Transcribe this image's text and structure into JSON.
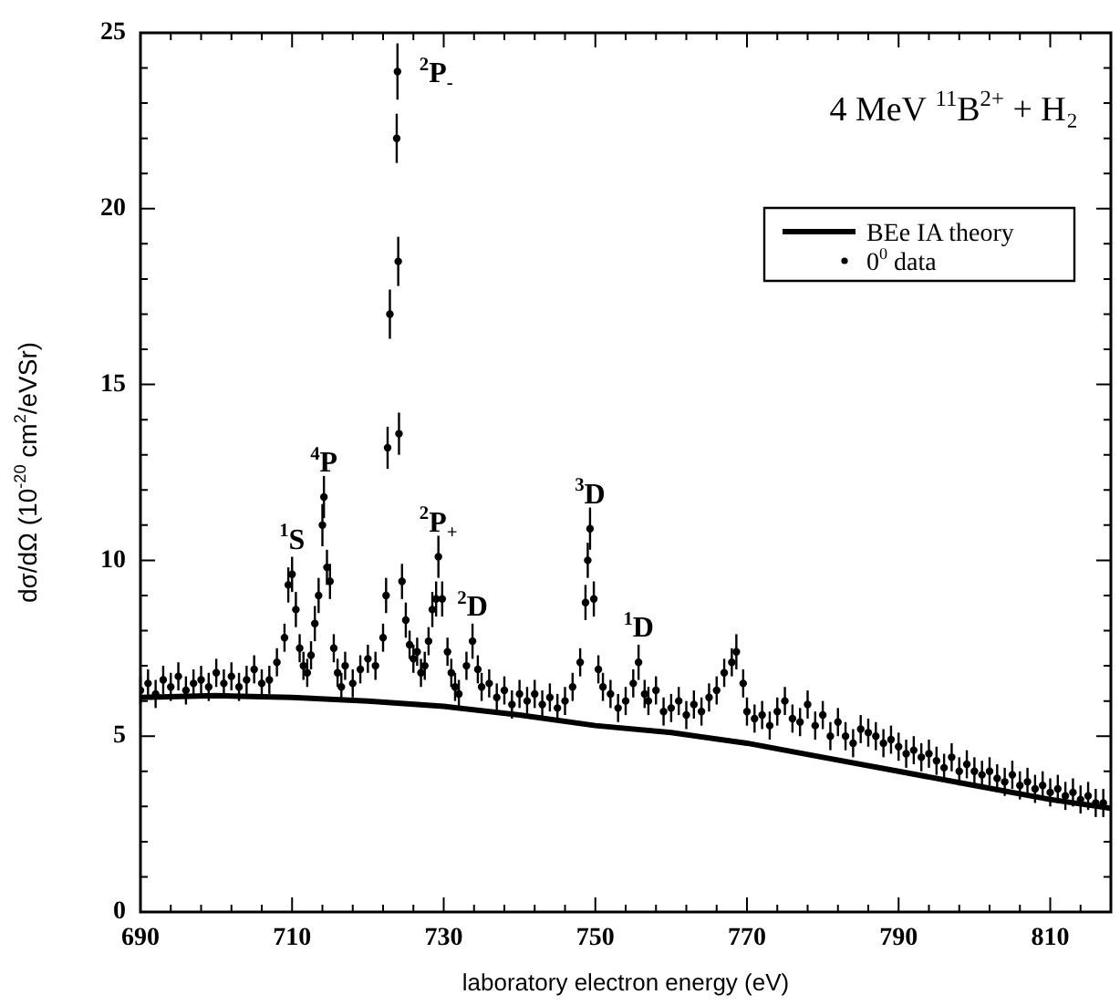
{
  "chart_data": {
    "type": "scatter",
    "title": "4 MeV $^{11}$B$^{2+}$ + H₂",
    "xlabel": "laboratory electron energy (eV)",
    "ylabel": "dσ/dΩ (10$^{-20}$ cm$^{2}$/eVSr)",
    "xlim": [
      690,
      818
    ],
    "ylim": [
      0,
      25
    ],
    "xticks": [
      690,
      {
        "value": 694,
        "label": null
      },
      {
        "value": 698,
        "label": null
      },
      {
        "value": 702,
        "label": null
      },
      {
        "value": 706,
        "label": null
      },
      710,
      {
        "value": 714,
        "label": null
      },
      {
        "value": 718,
        "label": null
      },
      {
        "value": 722,
        "label": null
      },
      {
        "value": 726,
        "label": null
      },
      730,
      {
        "value": 734,
        "label": null
      },
      {
        "value": 738,
        "label": null
      },
      {
        "value": 742,
        "label": null
      },
      {
        "value": 746,
        "label": null
      },
      750,
      {
        "value": 754,
        "label": null
      },
      {
        "value": 758,
        "label": null
      },
      {
        "value": 762,
        "label": null
      },
      {
        "value": 766,
        "label": null
      },
      770,
      {
        "value": 774,
        "label": null
      },
      {
        "value": 778,
        "label": null
      },
      {
        "value": 782,
        "label": null
      },
      {
        "value": 786,
        "label": null
      },
      790,
      {
        "value": 794,
        "label": null
      },
      {
        "value": 798,
        "label": null
      },
      {
        "value": 802,
        "label": null
      },
      {
        "value": 806,
        "label": null
      },
      810,
      {
        "value": 814,
        "label": null
      }
    ],
    "yticks": [
      0,
      {
        "value": 1,
        "label": null
      },
      {
        "value": 2,
        "label": null
      },
      {
        "value": 3,
        "label": null
      },
      {
        "value": 4,
        "label": null
      },
      5,
      {
        "value": 6,
        "label": null
      },
      {
        "value": 7,
        "label": null
      },
      {
        "value": 8,
        "label": null
      },
      {
        "value": 9,
        "label": null
      },
      10,
      {
        "value": 11,
        "label": null
      },
      {
        "value": 12,
        "label": null
      },
      {
        "value": 13,
        "label": null
      },
      {
        "value": 14,
        "label": null
      },
      15,
      {
        "value": 16,
        "label": null
      },
      {
        "value": 17,
        "label": null
      },
      {
        "value": 18,
        "label": null
      },
      {
        "value": 19,
        "label": null
      },
      20,
      {
        "value": 21,
        "label": null
      },
      {
        "value": 22,
        "label": null
      },
      {
        "value": 23,
        "label": null
      },
      {
        "value": 24,
        "label": null
      },
      25
    ],
    "grid": false,
    "legend": "top right",
    "series": [
      {
        "name": "BEe IA theory",
        "type": "line",
        "color": "#000000",
        "line_style": "solid",
        "marker": "none",
        "x": [
          690,
          700,
          710,
          720,
          730,
          740,
          750,
          760,
          770,
          780,
          790,
          800,
          810,
          818
        ],
        "values": [
          6.1,
          6.15,
          6.1,
          6.0,
          5.85,
          5.6,
          5.3,
          5.1,
          4.8,
          4.4,
          4.0,
          3.6,
          3.2,
          2.95
        ]
      },
      {
        "name": "0$^{0}$ data",
        "type": "scatter",
        "color": "#000000",
        "marker": "circle",
        "x": [
          690,
          691,
          692,
          693,
          694,
          695,
          696,
          697,
          698,
          699,
          700,
          701,
          702,
          703,
          704,
          705,
          706,
          707,
          708,
          709,
          709.5,
          710,
          710.5,
          711,
          711.5,
          712,
          712.5,
          713,
          713.5,
          714,
          714.2,
          714.6,
          715,
          715.5,
          716,
          716.5,
          717,
          718,
          719,
          720,
          721,
          722,
          722.4,
          722.6,
          722.9,
          723.8,
          723.9,
          724,
          724.1,
          724.5,
          725,
          725.5,
          726,
          726.5,
          727,
          727.5,
          728,
          728.5,
          729,
          729.3,
          729.8,
          730.5,
          731,
          731.5,
          732,
          733,
          733.8,
          734.5,
          735,
          736,
          737,
          738,
          739,
          740,
          741,
          742,
          743,
          744,
          745,
          746,
          747,
          748,
          748.7,
          749,
          749.3,
          749.8,
          750.4,
          751,
          752,
          753,
          754,
          755,
          755.7,
          756.5,
          757,
          758,
          759,
          760,
          761,
          762,
          763,
          764,
          765,
          766,
          767,
          768,
          768.6,
          769.5,
          770,
          771,
          772,
          773,
          774,
          775,
          776,
          777,
          778,
          779,
          780,
          781,
          782,
          783,
          784,
          785,
          786,
          787,
          788,
          789,
          790,
          791,
          792,
          793,
          794,
          795,
          796,
          797,
          798,
          799,
          800,
          801,
          802,
          803,
          804,
          805,
          806,
          807,
          808,
          809,
          810,
          811,
          812,
          813,
          814,
          815,
          816,
          817
        ],
        "values": [
          6.3,
          6.5,
          6.2,
          6.6,
          6.4,
          6.7,
          6.3,
          6.5,
          6.6,
          6.4,
          6.8,
          6.5,
          6.7,
          6.4,
          6.6,
          6.9,
          6.5,
          6.6,
          7.1,
          7.8,
          9.3,
          9.6,
          8.6,
          7.5,
          7.0,
          6.8,
          7.3,
          8.2,
          9.0,
          11.0,
          11.8,
          9.8,
          9.4,
          7.5,
          6.8,
          6.4,
          7.0,
          6.5,
          6.9,
          7.2,
          7.0,
          7.8,
          9.0,
          13.2,
          17.0,
          22.0,
          23.9,
          18.5,
          13.6,
          9.4,
          8.3,
          7.6,
          7.2,
          7.4,
          6.8,
          7.0,
          7.7,
          8.6,
          8.9,
          10.1,
          8.9,
          7.4,
          6.8,
          6.4,
          6.2,
          7.0,
          7.7,
          6.9,
          6.4,
          6.5,
          6.1,
          6.3,
          5.9,
          6.2,
          6.0,
          6.2,
          5.9,
          6.1,
          5.8,
          6.0,
          6.4,
          7.1,
          8.8,
          10.0,
          10.9,
          8.9,
          6.9,
          6.4,
          6.2,
          5.8,
          6.0,
          6.5,
          7.1,
          6.2,
          6.0,
          6.3,
          5.7,
          5.8,
          6.0,
          5.6,
          5.9,
          5.7,
          6.1,
          6.3,
          6.8,
          7.1,
          7.4,
          6.5,
          5.7,
          5.5,
          5.6,
          5.3,
          5.7,
          6.0,
          5.5,
          5.4,
          5.9,
          5.3,
          5.6,
          5.0,
          5.4,
          5.0,
          4.8,
          5.2,
          5.1,
          5.0,
          4.8,
          4.9,
          4.7,
          4.5,
          4.6,
          4.4,
          4.5,
          4.3,
          4.1,
          4.4,
          4.0,
          4.2,
          4.0,
          3.9,
          4.0,
          3.8,
          3.7,
          3.9,
          3.6,
          3.7,
          3.5,
          3.6,
          3.4,
          3.5,
          3.3,
          3.4,
          3.2,
          3.3,
          3.1,
          3.1
        ],
        "errors": [
          0.4,
          0.4,
          0.4,
          0.4,
          0.4,
          0.4,
          0.4,
          0.4,
          0.4,
          0.4,
          0.4,
          0.4,
          0.4,
          0.4,
          0.4,
          0.4,
          0.4,
          0.4,
          0.4,
          0.4,
          0.5,
          0.5,
          0.5,
          0.4,
          0.4,
          0.4,
          0.4,
          0.5,
          0.5,
          0.6,
          0.6,
          0.5,
          0.5,
          0.4,
          0.4,
          0.4,
          0.4,
          0.4,
          0.4,
          0.4,
          0.4,
          0.4,
          0.5,
          0.6,
          0.7,
          0.7,
          0.8,
          0.7,
          0.6,
          0.5,
          0.5,
          0.4,
          0.4,
          0.4,
          0.4,
          0.4,
          0.4,
          0.5,
          0.5,
          0.6,
          0.5,
          0.4,
          0.4,
          0.4,
          0.4,
          0.4,
          0.5,
          0.4,
          0.4,
          0.4,
          0.4,
          0.4,
          0.4,
          0.4,
          0.4,
          0.4,
          0.4,
          0.4,
          0.4,
          0.4,
          0.4,
          0.4,
          0.5,
          0.5,
          0.6,
          0.5,
          0.4,
          0.4,
          0.4,
          0.4,
          0.4,
          0.4,
          0.5,
          0.4,
          0.4,
          0.4,
          0.4,
          0.4,
          0.4,
          0.4,
          0.4,
          0.4,
          0.4,
          0.4,
          0.4,
          0.4,
          0.5,
          0.4,
          0.4,
          0.4,
          0.4,
          0.4,
          0.4,
          0.4,
          0.4,
          0.4,
          0.4,
          0.4,
          0.4,
          0.4,
          0.4,
          0.4,
          0.4,
          0.4,
          0.4,
          0.4,
          0.4,
          0.4,
          0.4,
          0.4,
          0.4,
          0.4,
          0.4,
          0.4,
          0.4,
          0.4,
          0.4,
          0.4,
          0.4,
          0.4,
          0.4,
          0.4,
          0.4,
          0.4,
          0.4,
          0.4,
          0.4,
          0.4,
          0.4,
          0.4,
          0.4,
          0.4,
          0.4,
          0.4,
          0.4,
          0.4
        ]
      }
    ],
    "annotations": [
      {
        "text": "$^{2}$P$_{-}$",
        "x": 723.9,
        "y": 23.9
      },
      {
        "text": "$^{4}$P",
        "x": 714.2,
        "y": 11.8
      },
      {
        "text": "$^{1}$S",
        "x": 710,
        "y": 9.6
      },
      {
        "text": "$^{2}$P$_{+}$",
        "x": 729.3,
        "y": 10.1
      },
      {
        "text": "$^{2}$D",
        "x": 733.8,
        "y": 7.7
      },
      {
        "text": "$^{3}$D",
        "x": 749.3,
        "y": 10.9
      },
      {
        "text": "$^{1}$D",
        "x": 755.7,
        "y": 7.1
      }
    ]
  }
}
